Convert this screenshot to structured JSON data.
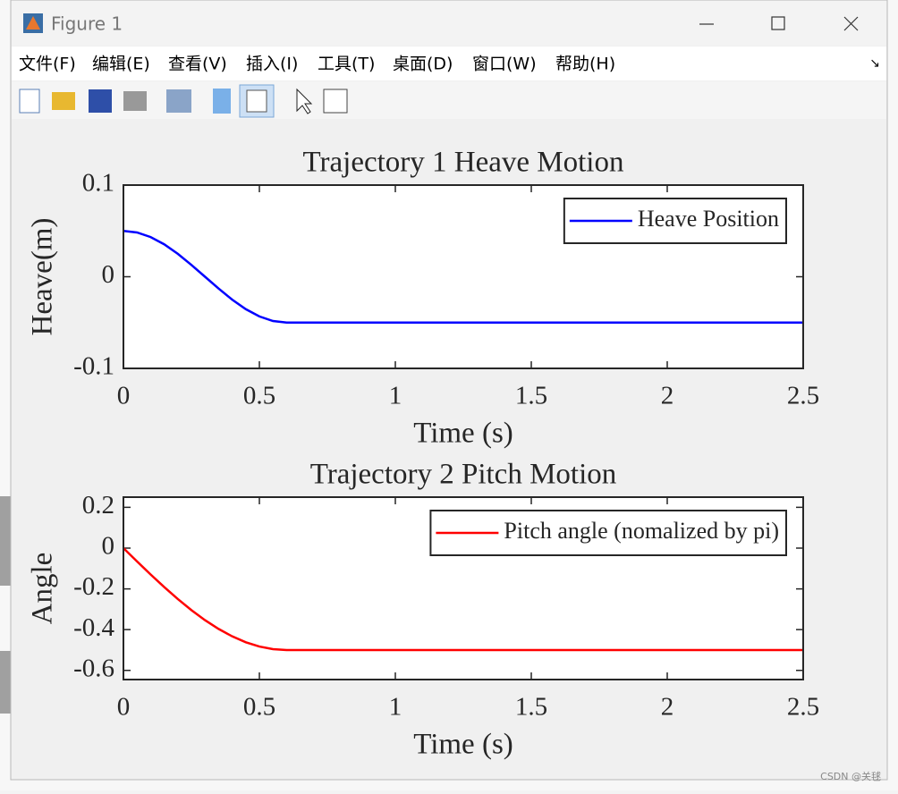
{
  "window": {
    "title": "Figure 1",
    "menu": [
      "文件(F)",
      "编辑(E)",
      "查看(V)",
      "插入(I)",
      "工具(T)",
      "桌面(D)",
      "窗口(W)",
      "帮助(H)"
    ]
  },
  "watermark": "CSDN @关毬",
  "chart_data": [
    {
      "type": "line",
      "title": "Trajectory 1 Heave Motion",
      "x_label": "Time (s)",
      "y_label": "Heave(m)",
      "x": [
        0,
        0.05,
        0.1,
        0.15,
        0.2,
        0.25,
        0.3,
        0.35,
        0.4,
        0.45,
        0.5,
        0.55,
        0.6,
        2.5
      ],
      "series": [
        {
          "name": "Heave Position",
          "color": "#0000ff",
          "values": [
            0.05,
            0.0483,
            0.0433,
            0.0354,
            0.025,
            0.0129,
            0,
            -0.0129,
            -0.025,
            -0.0354,
            -0.0433,
            -0.0483,
            -0.05,
            -0.05
          ]
        }
      ],
      "xlim": [
        0,
        2.5
      ],
      "xticks": [
        0,
        0.5,
        1,
        1.5,
        2,
        2.5
      ],
      "ylim": [
        -0.1,
        0.1
      ],
      "yticks": [
        -0.1,
        0,
        0.1
      ],
      "legend": "upper right",
      "grid": false
    },
    {
      "type": "line",
      "title": "Trajectory 2 Pitch Motion",
      "x_label": "Time (s)",
      "y_label": "Angle",
      "x": [
        0,
        0.05,
        0.1,
        0.15,
        0.2,
        0.25,
        0.3,
        0.35,
        0.4,
        0.45,
        0.5,
        0.55,
        0.6,
        2.5
      ],
      "series": [
        {
          "name": "Pitch angle (nomalized by pi)",
          "color": "#ff0000",
          "values": [
            0,
            -0.0653,
            -0.1294,
            -0.1913,
            -0.25,
            -0.3044,
            -0.3536,
            -0.3967,
            -0.433,
            -0.4619,
            -0.483,
            -0.4957,
            -0.5,
            -0.5
          ]
        }
      ],
      "xlim": [
        0,
        2.5
      ],
      "xticks": [
        0,
        0.5,
        1,
        1.5,
        2,
        2.5
      ],
      "ylim": [
        -0.645,
        0.25
      ],
      "yticks": [
        -0.6,
        -0.4,
        -0.2,
        0,
        0.2
      ],
      "legend": "upper right",
      "grid": false
    }
  ]
}
